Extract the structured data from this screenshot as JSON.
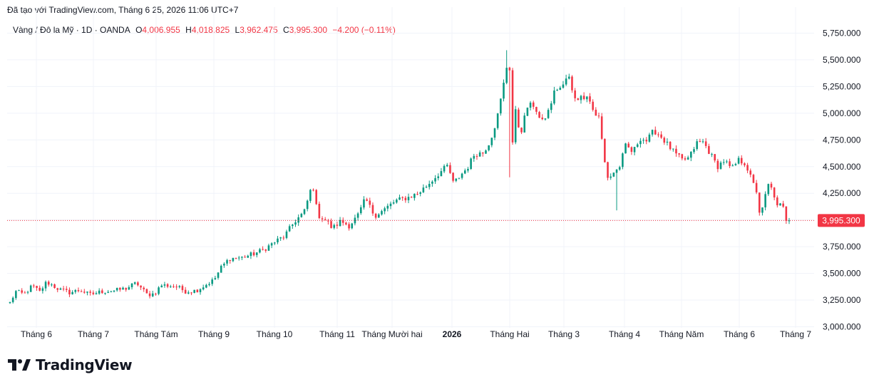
{
  "header": {
    "title": "Đã tạo với TradingView.com, Tháng 6 25, 2026 11:06 UTC+7"
  },
  "legend": {
    "symbol": "Vàng / Đô la Mỹ · 1D · OANDA",
    "open_label": "O",
    "open": "4,006.955",
    "high_label": "H",
    "high": "4,018.825",
    "low_label": "L",
    "low": "3,962.475",
    "close_label": "C",
    "close": "3,995.300",
    "change": "−4.200 (−0.11%)"
  },
  "brand": {
    "name": "TradingView"
  },
  "colors": {
    "up": "#089981",
    "down": "#f23645",
    "grid": "#f0f3fa",
    "text": "#131722"
  },
  "chart_data": {
    "type": "candlestick",
    "title": "Vàng / Đô la Mỹ · 1D · OANDA",
    "x_tick_labels": [
      "Tháng 6",
      "Tháng 7",
      "Tháng Tám",
      "Tháng 9",
      "Tháng 10",
      "Tháng 11",
      "Tháng Mười hai",
      "2026",
      "Tháng Hai",
      "Tháng 3",
      "Tháng 4",
      "Tháng Năm",
      "Tháng 6",
      "Tháng 7"
    ],
    "y_tick_labels": [
      "5,750.000",
      "5,500.000",
      "5,250.000",
      "5,000.000",
      "4,750.000",
      "4,500.000",
      "4,250.000",
      "4,000.000",
      "3,750.000",
      "3,500.000",
      "3,250.000",
      "3,000.000"
    ],
    "y_ticks": [
      5750,
      5500,
      5250,
      5000,
      4750,
      4500,
      4250,
      4000,
      3750,
      3500,
      3250,
      3000
    ],
    "ylim": [
      2990,
      5860
    ],
    "last_price": 3995.3,
    "last_price_label": "3,995.300",
    "grid": true,
    "anchors": [
      {
        "x": 0,
        "v": 3225
      },
      {
        "x": 8,
        "v": 3330
      },
      {
        "x": 20,
        "v": 3305
      },
      {
        "x": 32,
        "v": 3385
      },
      {
        "x": 42,
        "v": 3325
      },
      {
        "x": 52,
        "v": 3420
      },
      {
        "x": 70,
        "v": 3350
      },
      {
        "x": 85,
        "v": 3320
      },
      {
        "x": 100,
        "v": 3345
      },
      {
        "x": 113,
        "v": 3300
      },
      {
        "x": 130,
        "v": 3330
      },
      {
        "x": 150,
        "v": 3340
      },
      {
        "x": 165,
        "v": 3360
      },
      {
        "x": 180,
        "v": 3410
      },
      {
        "x": 195,
        "v": 3300
      },
      {
        "x": 205,
        "v": 3310
      },
      {
        "x": 215,
        "v": 3390
      },
      {
        "x": 235,
        "v": 3380
      },
      {
        "x": 250,
        "v": 3330
      },
      {
        "x": 265,
        "v": 3340
      },
      {
        "x": 275,
        "v": 3380
      },
      {
        "x": 290,
        "v": 3440
      },
      {
        "x": 300,
        "v": 3555
      },
      {
        "x": 312,
        "v": 3640
      },
      {
        "x": 330,
        "v": 3650
      },
      {
        "x": 345,
        "v": 3680
      },
      {
        "x": 360,
        "v": 3720
      },
      {
        "x": 375,
        "v": 3790
      },
      {
        "x": 390,
        "v": 3850
      },
      {
        "x": 405,
        "v": 3990
      },
      {
        "x": 418,
        "v": 4075
      },
      {
        "x": 430,
        "v": 4345
      },
      {
        "x": 437,
        "v": 4050
      },
      {
        "x": 450,
        "v": 3990
      },
      {
        "x": 458,
        "v": 3920
      },
      {
        "x": 470,
        "v": 3990
      },
      {
        "x": 482,
        "v": 3945
      },
      {
        "x": 495,
        "v": 4050
      },
      {
        "x": 505,
        "v": 4200
      },
      {
        "x": 518,
        "v": 4040
      },
      {
        "x": 530,
        "v": 4090
      },
      {
        "x": 548,
        "v": 4180
      },
      {
        "x": 565,
        "v": 4210
      },
      {
        "x": 580,
        "v": 4250
      },
      {
        "x": 595,
        "v": 4340
      },
      {
        "x": 610,
        "v": 4440
      },
      {
        "x": 622,
        "v": 4510
      },
      {
        "x": 630,
        "v": 4340
      },
      {
        "x": 640,
        "v": 4420
      },
      {
        "x": 650,
        "v": 4490
      },
      {
        "x": 660,
        "v": 4620
      },
      {
        "x": 672,
        "v": 4630
      },
      {
        "x": 682,
        "v": 4740
      },
      {
        "x": 692,
        "v": 4950
      },
      {
        "x": 700,
        "v": 5220
      },
      {
        "x": 706,
        "v": 5450
      },
      {
        "x": 711,
        "v": 5410
      },
      {
        "x": 713,
        "v": 4650
      },
      {
        "x": 718,
        "v": 5020
      },
      {
        "x": 725,
        "v": 4800
      },
      {
        "x": 735,
        "v": 5060
      },
      {
        "x": 745,
        "v": 5080
      },
      {
        "x": 755,
        "v": 4900
      },
      {
        "x": 765,
        "v": 5020
      },
      {
        "x": 775,
        "v": 5230
      },
      {
        "x": 785,
        "v": 5240
      },
      {
        "x": 793,
        "v": 5370
      },
      {
        "x": 800,
        "v": 5160
      },
      {
        "x": 810,
        "v": 5140
      },
      {
        "x": 820,
        "v": 5180
      },
      {
        "x": 830,
        "v": 5000
      },
      {
        "x": 838,
        "v": 4950
      },
      {
        "x": 843,
        "v": 4600
      },
      {
        "x": 850,
        "v": 4380
      },
      {
        "x": 858,
        "v": 4450
      },
      {
        "x": 865,
        "v": 4480
      },
      {
        "x": 875,
        "v": 4700
      },
      {
        "x": 885,
        "v": 4630
      },
      {
        "x": 895,
        "v": 4770
      },
      {
        "x": 905,
        "v": 4740
      },
      {
        "x": 915,
        "v": 4840
      },
      {
        "x": 925,
        "v": 4780
      },
      {
        "x": 935,
        "v": 4700
      },
      {
        "x": 945,
        "v": 4620
      },
      {
        "x": 955,
        "v": 4560
      },
      {
        "x": 965,
        "v": 4580
      },
      {
        "x": 975,
        "v": 4720
      },
      {
        "x": 985,
        "v": 4730
      },
      {
        "x": 995,
        "v": 4620
      },
      {
        "x": 1005,
        "v": 4500
      },
      {
        "x": 1015,
        "v": 4560
      },
      {
        "x": 1025,
        "v": 4470
      },
      {
        "x": 1035,
        "v": 4560
      },
      {
        "x": 1045,
        "v": 4530
      },
      {
        "x": 1055,
        "v": 4350
      },
      {
        "x": 1062,
        "v": 4250
      },
      {
        "x": 1066,
        "v": 4000
      },
      {
        "x": 1072,
        "v": 4200
      },
      {
        "x": 1078,
        "v": 4340
      },
      {
        "x": 1085,
        "v": 4250
      },
      {
        "x": 1090,
        "v": 4120
      },
      {
        "x": 1097,
        "v": 4150
      },
      {
        "x": 1103,
        "v": 4000
      },
      {
        "x": 1107,
        "v": 3995
      }
    ]
  }
}
